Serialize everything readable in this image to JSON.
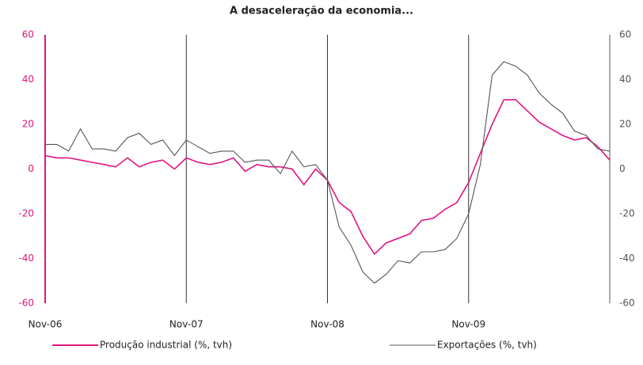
{
  "chart_data": {
    "type": "line",
    "title": "A desaceleração da economia...",
    "categories": [
      "Nov-06",
      null,
      null,
      null,
      null,
      null,
      null,
      null,
      null,
      null,
      null,
      null,
      "Nov-07",
      null,
      null,
      null,
      null,
      null,
      null,
      null,
      null,
      null,
      null,
      null,
      "Nov-08",
      null,
      null,
      null,
      null,
      null,
      null,
      null,
      null,
      null,
      null,
      null,
      "Nov-09",
      null,
      null,
      null,
      null,
      null,
      null,
      null,
      null,
      null,
      null,
      null,
      null
    ],
    "series": [
      {
        "name": "Produção industrial (%, tvh)",
        "color": "#e0157f",
        "axis": "y",
        "values": [
          6,
          5,
          5,
          4,
          3,
          2,
          1,
          5,
          1,
          3,
          4,
          0,
          5,
          3,
          2,
          3,
          5,
          -1,
          2,
          1,
          1,
          0,
          -7,
          0,
          -5,
          -15,
          -19,
          -30,
          -38,
          -33,
          -31,
          -29,
          -23,
          -22,
          -18,
          -15,
          -6,
          7,
          20,
          31,
          31,
          26,
          21,
          18,
          15,
          13,
          14,
          10,
          4
        ]
      },
      {
        "name": "Exportações (%, tvh)",
        "color": "#555555",
        "axis": "y2",
        "values": [
          11,
          11,
          8,
          18,
          9,
          9,
          8,
          14,
          16,
          11,
          13,
          6,
          13,
          10,
          7,
          8,
          8,
          3,
          4,
          4,
          -2,
          8,
          1,
          2,
          -5,
          -26,
          -34,
          -46,
          -51,
          -47,
          -41,
          -42,
          -37,
          -37,
          -36,
          -31,
          -20,
          2,
          42,
          48,
          46,
          42,
          34,
          29,
          25,
          17,
          15,
          9,
          8
        ]
      }
    ],
    "ylim": [
      -60,
      60
    ],
    "yticks": [
      -60,
      -40,
      -20,
      0,
      20,
      40,
      60
    ],
    "y2lim": [
      -60,
      60
    ],
    "y2ticks": [
      -60,
      -40,
      -20,
      0,
      20,
      40,
      60
    ],
    "left_axis_color": "#e0157f",
    "right_axis_color": "#555555"
  }
}
